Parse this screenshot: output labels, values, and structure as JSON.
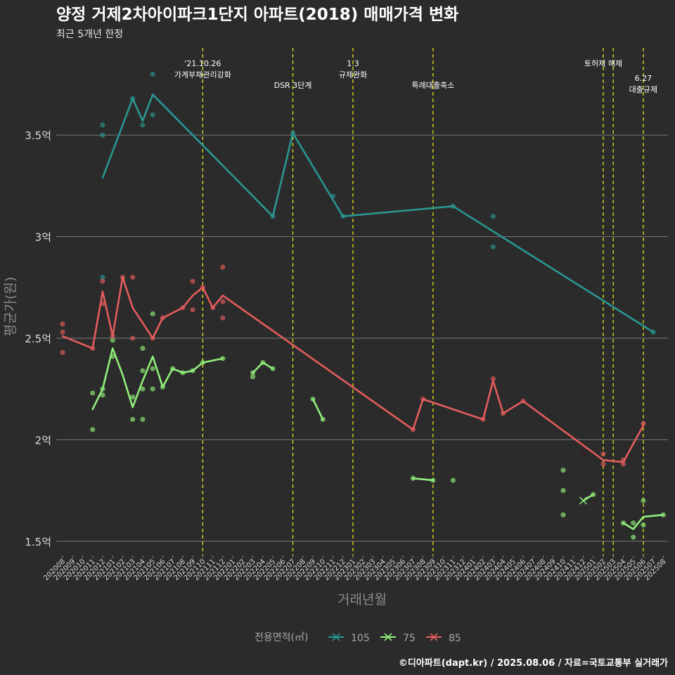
{
  "chart_data": {
    "type": "line",
    "title": "양정 거제2차아이파크1단지 아파트(2018) 매매가격 변화",
    "subtitle": "최근 5개년 한정",
    "xlabel": "거래년월",
    "ylabel": "평균가(원)",
    "ylim": [
      1.43,
      3.93
    ],
    "yticks": [
      {
        "value": 1.5,
        "label": "1.5억"
      },
      {
        "value": 2.0,
        "label": "2억"
      },
      {
        "value": 2.5,
        "label": "2.5억"
      },
      {
        "value": 3.0,
        "label": "3억"
      },
      {
        "value": 3.5,
        "label": "3.5억"
      }
    ],
    "x_months": [
      "202008",
      "202009",
      "202010",
      "202011",
      "202012",
      "202101",
      "202102",
      "202103",
      "202104",
      "202105",
      "202106",
      "202107",
      "202108",
      "202109",
      "202110",
      "202111",
      "202112",
      "202201",
      "202202",
      "202203",
      "202204",
      "202205",
      "202206",
      "202207",
      "202208",
      "202209",
      "202210",
      "202211",
      "202212",
      "202301",
      "202302",
      "202303",
      "202304",
      "202305",
      "202306",
      "202307",
      "202308",
      "202309",
      "202310",
      "202311",
      "202312",
      "202401",
      "202402",
      "202403",
      "202404",
      "202405",
      "202406",
      "202407",
      "202408",
      "202409",
      "202410",
      "202411",
      "202412",
      "202501",
      "202502",
      "202503",
      "202504",
      "202505",
      "202506",
      "202507",
      "202508"
    ],
    "legend": {
      "title": "전용면적(㎡)",
      "position": "bottom"
    },
    "grid": true,
    "series": [
      {
        "name": "105",
        "color": "#2a9690",
        "line": [
          [
            "202012",
            3.29
          ],
          [
            "202103",
            3.68
          ],
          [
            "202104",
            3.57
          ],
          [
            "202105",
            3.7
          ],
          [
            "202205",
            3.1
          ],
          [
            "202207",
            3.51
          ],
          [
            "202212",
            3.1
          ],
          [
            "202311",
            3.15
          ],
          [
            "202507",
            2.53
          ]
        ],
        "points": [
          [
            "202012",
            3.55
          ],
          [
            "202012",
            3.5
          ],
          [
            "202012",
            2.8
          ],
          [
            "202103",
            3.68
          ],
          [
            "202104",
            3.55
          ],
          [
            "202105",
            3.8
          ],
          [
            "202105",
            3.6
          ],
          [
            "202205",
            3.1
          ],
          [
            "202207",
            3.51
          ],
          [
            "202211",
            3.2
          ],
          [
            "202212",
            3.1
          ],
          [
            "202311",
            3.15
          ],
          [
            "202403",
            3.1
          ],
          [
            "202403",
            2.95
          ],
          [
            "202507",
            2.53
          ]
        ]
      },
      {
        "name": "75",
        "color": "#90ee7a",
        "segments": [
          [
            [
              "202011",
              2.15
            ],
            [
              "202012",
              2.25
            ],
            [
              "202101",
              2.45
            ],
            [
              "202102",
              2.32
            ],
            [
              "202103",
              2.16
            ],
            [
              "202104",
              2.29
            ],
            [
              "202105",
              2.41
            ],
            [
              "202106",
              2.26
            ],
            [
              "202107",
              2.35
            ],
            [
              "202108",
              2.33
            ],
            [
              "202109",
              2.34
            ],
            [
              "202110",
              2.38
            ],
            [
              "202112",
              2.4
            ]
          ],
          [
            [
              "202203",
              2.33
            ],
            [
              "202204",
              2.38
            ],
            [
              "202205",
              2.35
            ]
          ],
          [
            [
              "202209",
              2.2
            ],
            [
              "202210",
              2.1
            ]
          ],
          [
            [
              "202307",
              1.81
            ],
            [
              "202309",
              1.8
            ]
          ],
          [
            [
              "202412",
              1.7
            ],
            [
              "202501",
              1.73
            ]
          ],
          [
            [
              "202504",
              1.59
            ],
            [
              "202505",
              1.56
            ],
            [
              "202506",
              1.62
            ],
            [
              "202508",
              1.63
            ]
          ]
        ],
        "points": [
          [
            "202011",
            2.23
          ],
          [
            "202011",
            2.05
          ],
          [
            "202012",
            2.25
          ],
          [
            "202012",
            2.22
          ],
          [
            "202101",
            2.49
          ],
          [
            "202101",
            2.41
          ],
          [
            "202103",
            2.21
          ],
          [
            "202103",
            2.1
          ],
          [
            "202104",
            2.45
          ],
          [
            "202104",
            2.34
          ],
          [
            "202104",
            2.25
          ],
          [
            "202104",
            2.1
          ],
          [
            "202105",
            2.62
          ],
          [
            "202105",
            2.35
          ],
          [
            "202105",
            2.25
          ],
          [
            "202106",
            2.26
          ],
          [
            "202107",
            2.35
          ],
          [
            "202108",
            2.33
          ],
          [
            "202109",
            2.34
          ],
          [
            "202110",
            2.38
          ],
          [
            "202112",
            2.4
          ],
          [
            "202203",
            2.33
          ],
          [
            "202203",
            2.31
          ],
          [
            "202204",
            2.38
          ],
          [
            "202205",
            2.35
          ],
          [
            "202209",
            2.2
          ],
          [
            "202210",
            2.1
          ],
          [
            "202307",
            1.81
          ],
          [
            "202309",
            1.8
          ],
          [
            "202311",
            1.8
          ],
          [
            "202410",
            1.85
          ],
          [
            "202410",
            1.75
          ],
          [
            "202410",
            1.63
          ],
          [
            "202501",
            1.73
          ],
          [
            "202504",
            1.59
          ],
          [
            "202505",
            1.59
          ],
          [
            "202505",
            1.52
          ],
          [
            "202506",
            1.7
          ],
          [
            "202506",
            1.58
          ],
          [
            "202508",
            1.63
          ]
        ],
        "marker": [
          "202412",
          1.7
        ]
      },
      {
        "name": "85",
        "color": "#e35c5c",
        "line": [
          [
            "202008",
            2.51
          ],
          [
            "202011",
            2.45
          ],
          [
            "202012",
            2.73
          ],
          [
            "202101",
            2.51
          ],
          [
            "202102",
            2.8
          ],
          [
            "202103",
            2.65
          ],
          [
            "202105",
            2.5
          ],
          [
            "202106",
            2.6
          ],
          [
            "202108",
            2.65
          ],
          [
            "202109",
            2.71
          ],
          [
            "202110",
            2.75
          ],
          [
            "202111",
            2.65
          ],
          [
            "202112",
            2.71
          ],
          [
            "202307",
            2.05
          ],
          [
            "202308",
            2.2
          ],
          [
            "202402",
            2.1
          ],
          [
            "202403",
            2.29
          ],
          [
            "202404",
            2.13
          ],
          [
            "202406",
            2.19
          ],
          [
            "202502",
            1.9
          ],
          [
            "202504",
            1.89
          ],
          [
            "202506",
            2.07
          ]
        ],
        "points": [
          [
            "202008",
            2.57
          ],
          [
            "202008",
            2.53
          ],
          [
            "202008",
            2.43
          ],
          [
            "202011",
            2.45
          ],
          [
            "202012",
            2.78
          ],
          [
            "202012",
            2.67
          ],
          [
            "202101",
            2.51
          ],
          [
            "202102",
            2.8
          ],
          [
            "202103",
            2.8
          ],
          [
            "202103",
            2.5
          ],
          [
            "202105",
            2.5
          ],
          [
            "202106",
            2.6
          ],
          [
            "202108",
            2.65
          ],
          [
            "202109",
            2.78
          ],
          [
            "202109",
            2.64
          ],
          [
            "202110",
            2.75
          ],
          [
            "202111",
            2.65
          ],
          [
            "202112",
            2.85
          ],
          [
            "202112",
            2.68
          ],
          [
            "202112",
            2.6
          ],
          [
            "202307",
            2.05
          ],
          [
            "202308",
            2.2
          ],
          [
            "202402",
            2.1
          ],
          [
            "202403",
            2.3
          ],
          [
            "202404",
            2.13
          ],
          [
            "202406",
            2.19
          ],
          [
            "202502",
            1.93
          ],
          [
            "202502",
            1.88
          ],
          [
            "202504",
            1.9
          ],
          [
            "202504",
            1.88
          ],
          [
            "202506",
            2.08
          ]
        ],
        "marker": [
          "202412",
          1.93
        ]
      }
    ],
    "annotations": [
      {
        "month": "202110",
        "lines": [
          "'21.10.26",
          "가계부채관리강화"
        ],
        "row": 1
      },
      {
        "month": "202207",
        "lines": [
          "DSR 3단계"
        ],
        "row": 2
      },
      {
        "month": "202301",
        "lines": [
          "1.3",
          "규제완화"
        ],
        "row": 1
      },
      {
        "month": "202309",
        "lines": [
          "특례대출축소"
        ],
        "row": 2
      },
      {
        "month": "202502",
        "lines": [
          "토허제 해제"
        ],
        "row": 1
      },
      {
        "month": "202503",
        "lines": [],
        "row": 1
      },
      {
        "month": "202506",
        "lines": [
          "6.27",
          "대출규제"
        ],
        "row": 3
      }
    ],
    "caption": "©디아파트(dapt.kr) / 2025.08.06 / 자료=국토교통부 실거래가"
  }
}
